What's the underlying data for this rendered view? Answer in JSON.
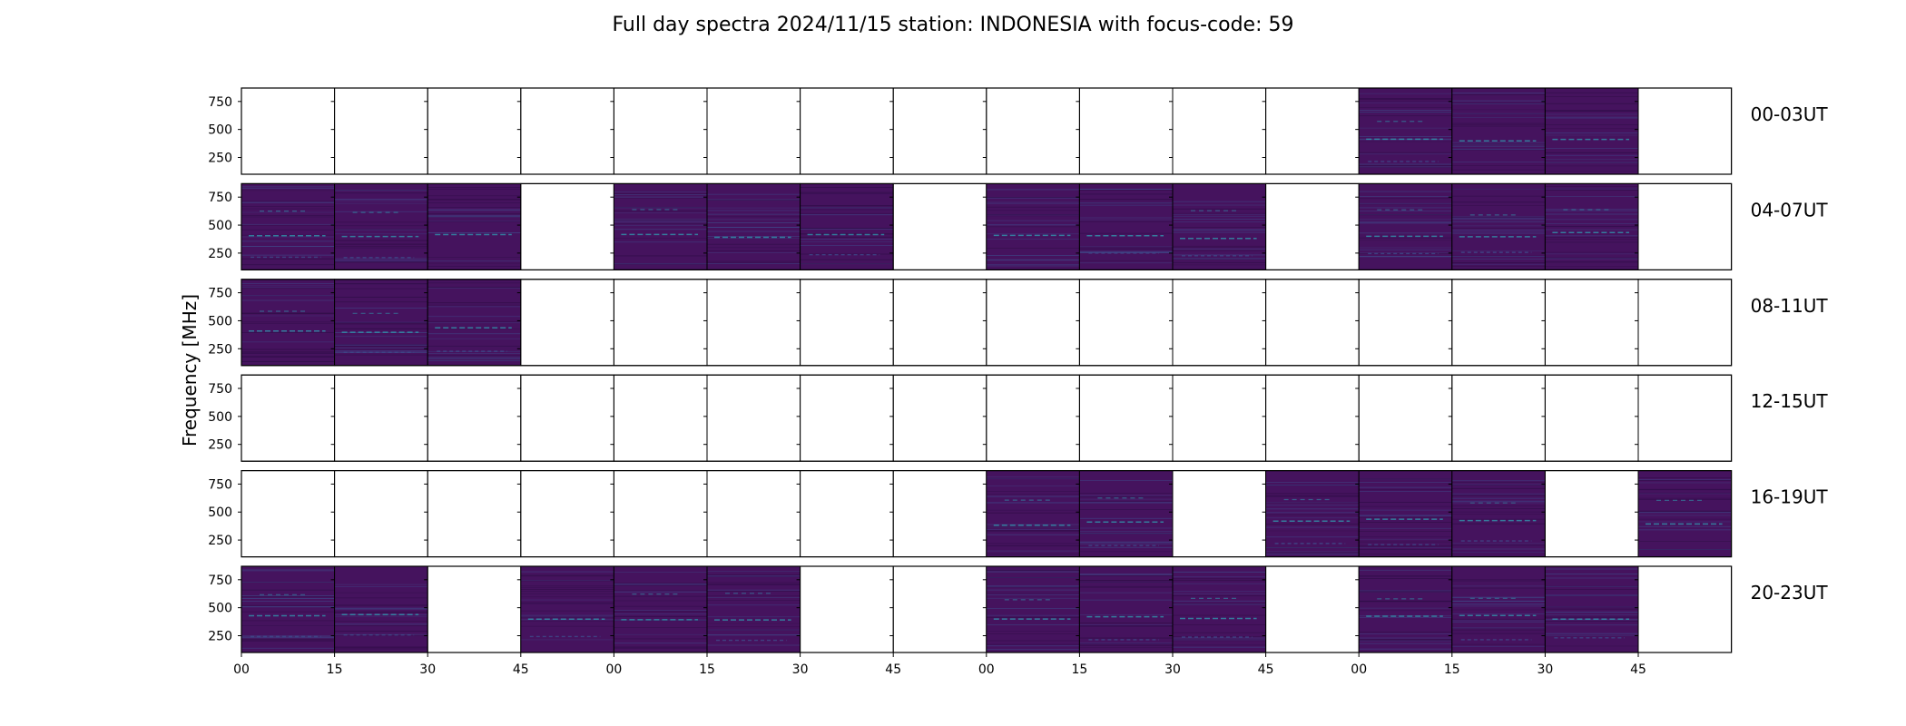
{
  "chart_data": {
    "type": "heatmap",
    "title": "Full day spectra 2024/11/15 station: INDONESIA with focus-code: 59",
    "ylabel": "Frequency [MHz]",
    "ylim": [
      100,
      870
    ],
    "y_ticks": [
      "250",
      "500",
      "750"
    ],
    "y_tick_values": [
      250,
      500,
      750
    ],
    "x_ticks": [
      "00",
      "15",
      "30",
      "45",
      "00",
      "15",
      "30",
      "45",
      "00",
      "15",
      "30",
      "45",
      "00",
      "15",
      "30",
      "45"
    ],
    "rows": [
      {
        "label": "00-03UT",
        "filled": [
          0,
          0,
          0,
          0,
          0,
          0,
          0,
          0,
          0,
          0,
          0,
          0,
          1,
          1,
          1,
          0
        ]
      },
      {
        "label": "04-07UT",
        "filled": [
          1,
          1,
          1,
          0,
          1,
          1,
          1,
          0,
          1,
          1,
          1,
          0,
          1,
          1,
          1,
          0
        ]
      },
      {
        "label": "08-11UT",
        "filled": [
          1,
          1,
          1,
          0,
          0,
          0,
          0,
          0,
          0,
          0,
          0,
          0,
          0,
          0,
          0,
          0
        ]
      },
      {
        "label": "12-15UT",
        "filled": [
          0,
          0,
          0,
          0,
          0,
          0,
          0,
          0,
          0,
          0,
          0,
          0,
          0,
          0,
          0,
          0
        ]
      },
      {
        "label": "16-19UT",
        "filled": [
          0,
          0,
          0,
          0,
          0,
          0,
          0,
          0,
          1,
          1,
          0,
          1,
          1,
          1,
          0,
          1
        ]
      },
      {
        "label": "20-23UT",
        "filled": [
          1,
          1,
          0,
          1,
          1,
          1,
          0,
          0,
          1,
          1,
          1,
          0,
          1,
          1,
          1,
          0
        ]
      }
    ],
    "colors": {
      "background": "#45135e",
      "band_light": "#3f4a8a",
      "highlight": "#2fa7b7",
      "frame": "#000000"
    },
    "grid": false
  }
}
